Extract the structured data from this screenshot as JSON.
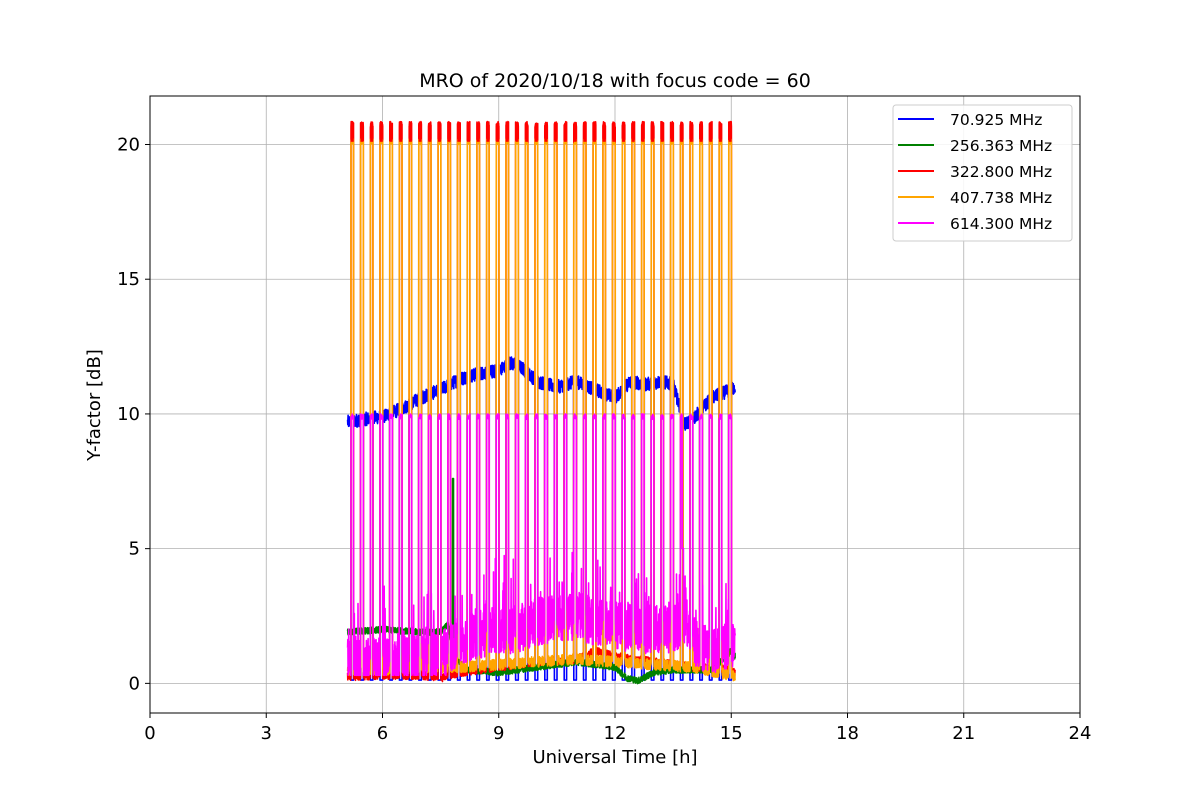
{
  "chart_data": {
    "type": "line",
    "title": "MRO of 2020/10/18 with focus code = 60",
    "xlabel": "Universal Time [h]",
    "ylabel": "Y-factor [dB]",
    "xlim": [
      0,
      24
    ],
    "ylim": [
      -1.1,
      21.8
    ],
    "xticks": [
      0,
      3,
      6,
      9,
      12,
      15,
      18,
      21,
      24
    ],
    "yticks": [
      0,
      5,
      10,
      15,
      20
    ],
    "grid": true,
    "legend_position": "top-right",
    "pulse_times": [
      5.22,
      5.47,
      5.72,
      5.97,
      6.22,
      6.47,
      6.72,
      6.97,
      7.22,
      7.47,
      7.72,
      7.97,
      8.22,
      8.47,
      8.72,
      8.97,
      9.22,
      9.47,
      9.72,
      9.97,
      10.22,
      10.47,
      10.72,
      10.97,
      11.22,
      11.47,
      11.72,
      11.97,
      12.22,
      12.47,
      12.72,
      12.97,
      13.22,
      13.47,
      13.72,
      13.97,
      14.22,
      14.47,
      14.72,
      14.97
    ],
    "series": [
      {
        "name": " 70.925 MHz",
        "color": "#0000ff",
        "x": [
          5.1,
          5.5,
          6.0,
          6.5,
          7.0,
          7.5,
          8.0,
          8.5,
          9.0,
          9.3,
          9.6,
          10.0,
          10.5,
          11.0,
          11.5,
          12.0,
          12.4,
          12.8,
          13.2,
          13.5,
          13.8,
          14.0,
          14.5,
          15.0,
          15.1
        ],
        "values": [
          9.7,
          9.8,
          9.9,
          10.2,
          10.6,
          10.9,
          11.3,
          11.5,
          11.6,
          11.9,
          11.7,
          11.2,
          11.0,
          11.2,
          10.9,
          10.6,
          11.2,
          11.1,
          11.2,
          11.1,
          9.6,
          9.8,
          10.6,
          10.9,
          11.0
        ],
        "noise": 0.25,
        "pulse": {
          "base": 0.12,
          "drop": true
        }
      },
      {
        "name": "256.363 MHz",
        "color": "#008000",
        "x": [
          5.1,
          6.0,
          7.0,
          7.5,
          7.7,
          7.8,
          8.2,
          9.0,
          10.0,
          11.0,
          11.5,
          12.0,
          12.3,
          12.6,
          13.0,
          13.5,
          14.0,
          14.5,
          15.0,
          15.1
        ],
        "values": [
          1.9,
          2.0,
          1.9,
          1.9,
          2.2,
          1.0,
          0.5,
          0.4,
          0.6,
          0.8,
          0.7,
          0.6,
          0.2,
          0.1,
          0.4,
          0.5,
          0.5,
          0.5,
          1.2,
          1.0
        ],
        "noise": 0.12,
        "spike": {
          "x": 7.82,
          "y": 7.6
        }
      },
      {
        "name": "322.800 MHz",
        "color": "#ff0000",
        "x": [
          5.1,
          6.0,
          7.0,
          7.5,
          8.0,
          9.0,
          10.0,
          11.0,
          11.5,
          12.0,
          13.0,
          14.0,
          15.0,
          15.1
        ],
        "values": [
          0.25,
          0.3,
          0.3,
          0.2,
          0.4,
          0.6,
          0.8,
          0.9,
          1.2,
          1.0,
          0.8,
          0.6,
          0.5,
          0.4
        ],
        "noise": 0.15,
        "pulse": {
          "top": 20.75
        }
      },
      {
        "name": "407.738 MHz",
        "color": "#ffa500",
        "x": [
          5.1,
          6.0,
          7.0,
          8.0,
          9.0,
          10.0,
          11.0,
          12.0,
          13.0,
          14.0,
          15.0,
          15.1
        ],
        "values": [
          0.5,
          0.5,
          0.6,
          0.6,
          0.7,
          0.8,
          0.9,
          0.8,
          0.7,
          0.6,
          0.3,
          0.3
        ],
        "noise": 0.2,
        "pulse": {
          "top": 20.1
        }
      },
      {
        "name": "614.300 MHz",
        "color": "#ff00ff",
        "x": [
          5.1,
          6.0,
          7.0,
          7.5,
          8.0,
          8.5,
          9.0,
          9.5,
          10.0,
          10.5,
          11.0,
          11.5,
          12.0,
          12.5,
          13.0,
          13.5,
          13.8,
          14.0,
          14.5,
          15.0,
          15.1
        ],
        "values": [
          0.9,
          0.8,
          0.9,
          1.0,
          1.6,
          1.8,
          2.0,
          2.0,
          2.3,
          2.4,
          2.5,
          2.3,
          2.2,
          2.0,
          2.0,
          2.0,
          2.4,
          1.5,
          1.2,
          1.5,
          1.3
        ],
        "noise": 0.9,
        "pulse": {
          "top": 9.9
        },
        "spike": {
          "x": 13.75,
          "y": 5.0
        }
      }
    ]
  }
}
